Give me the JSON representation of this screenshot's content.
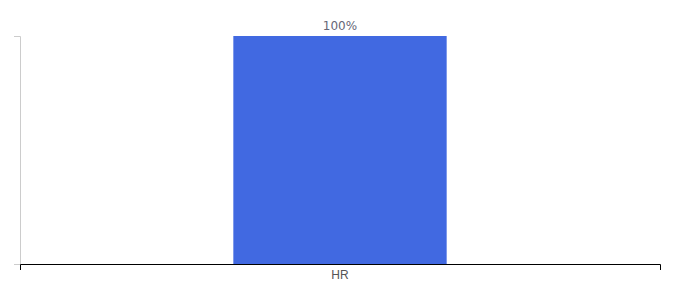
{
  "chart_data": {
    "type": "bar",
    "categories": [
      "HR"
    ],
    "values": [
      100
    ],
    "color": "#4169e1",
    "ylim": [
      0,
      100
    ],
    "data_labels": true,
    "value_labels": [
      "100%"
    ],
    "tick_labels": "x"
  }
}
